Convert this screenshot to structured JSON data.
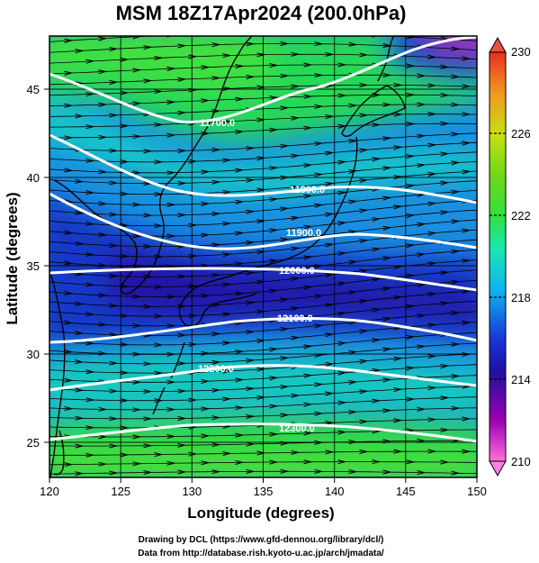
{
  "title": "MSM 18Z17Apr2024 (200.0hPa)",
  "x_axis": {
    "label": "Longitude (degrees)",
    "range": [
      120,
      150
    ],
    "ticks": [
      "120",
      "125",
      "130",
      "135",
      "140",
      "145",
      "150"
    ]
  },
  "y_axis": {
    "label": "Latitude  (degrees)",
    "range": [
      22.5,
      47.5
    ],
    "ticks": [
      "25",
      "30",
      "35",
      "40",
      "45"
    ]
  },
  "colorbar": {
    "range": [
      210,
      230
    ],
    "ticks": [
      "210",
      "214",
      "218",
      "222",
      "226",
      "230"
    ]
  },
  "contours": [
    {
      "label": "11700.0"
    },
    {
      "label": "11800.0"
    },
    {
      "label": "11900.0"
    },
    {
      "label": "12000.0"
    },
    {
      "label": "12100.0"
    },
    {
      "label": "12200.0"
    },
    {
      "label": "12300.0"
    }
  ],
  "credits": {
    "line1": "Drawing by DCL (https://www.gfd-dennou.org/library/dcl/)",
    "line2": "Data from http://database.rish.kyoto-u.ac.jp/arch/jmadata/"
  },
  "colors": {
    "contour": "#ffffff",
    "coast": "#000000",
    "vector": "#000000"
  }
}
